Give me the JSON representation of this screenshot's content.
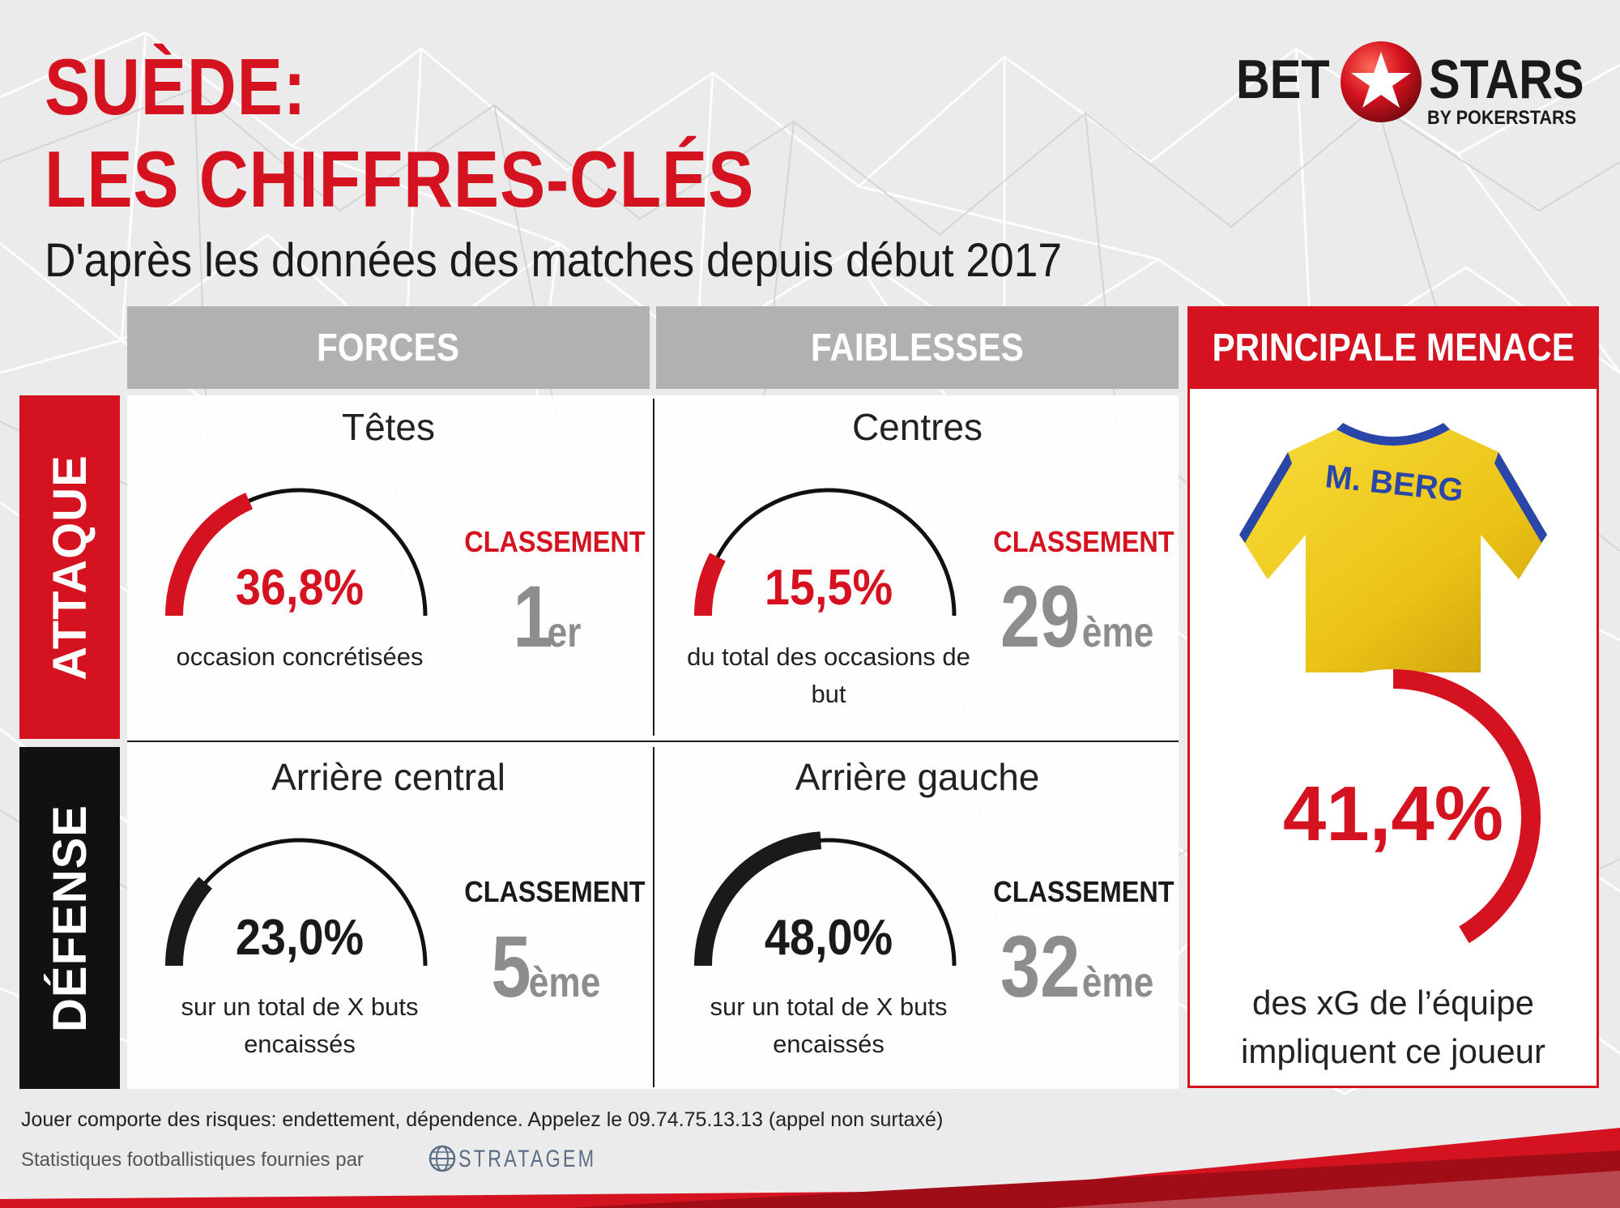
{
  "header": {
    "title_line1": "SUÈDE:",
    "title_line2": "LES CHIFFRES-CLÉS",
    "subtitle": "D'après les données des matches depuis début 2017"
  },
  "logo": {
    "bet": "BET",
    "stars": "STARS",
    "by": "BY POKERSTARS"
  },
  "columns": {
    "forces": "FORCES",
    "faiblesses": "FAIBLESSES",
    "menace": "PRINCIPALE MENACE"
  },
  "rows": {
    "attaque": "ATTAQUE",
    "defense": "DÉFENSE"
  },
  "colors": {
    "red": "#d5121f",
    "black": "#1a1a1a",
    "grey": "#b1b1b3",
    "jersey_yellow": "#f2cf1d",
    "jersey_blue": "#2a46a8"
  },
  "chart_data": [
    {
      "type": "gauge",
      "title": "Têtes",
      "value": 36.8,
      "value_label": "36,8%",
      "caption": "occasion concrétisées",
      "rank_label": "CLASSEMENT",
      "rank": "1",
      "rank_suffix": "er",
      "color": "#d5121f"
    },
    {
      "type": "gauge",
      "title": "Centres",
      "value": 15.5,
      "value_label": "15,5%",
      "caption": "du total des occasions de but",
      "rank_label": "CLASSEMENT",
      "rank": "29",
      "rank_suffix": "ème",
      "color": "#d5121f"
    },
    {
      "type": "gauge",
      "title": "Arrière central",
      "value": 23.0,
      "value_label": "23,0%",
      "caption": "sur un total de X buts encaissés",
      "rank_label": "CLASSEMENT",
      "rank": "5",
      "rank_suffix": "ème",
      "color": "#1a1a1a"
    },
    {
      "type": "gauge",
      "title": "Arrière gauche",
      "value": 48.0,
      "value_label": "48,0%",
      "caption": "sur un total de X buts encaissés",
      "rank_label": "CLASSEMENT",
      "rank": "32",
      "rank_suffix": "ème",
      "color": "#1a1a1a"
    },
    {
      "type": "donut",
      "value": 41.4,
      "value_label": "41,4%",
      "caption": "des xG de l’équipe impliquent ce joueur",
      "player": "M. BERG",
      "color": "#d5121f"
    }
  ],
  "footer": {
    "disclaimer": "Jouer comporte des risques: endettement, dépendence. Appelez le 09.74.75.13.13 (appel non surtaxé)",
    "stats_by": "Statistiques footballistiques fournies par",
    "provider": "STRATAGEM"
  }
}
